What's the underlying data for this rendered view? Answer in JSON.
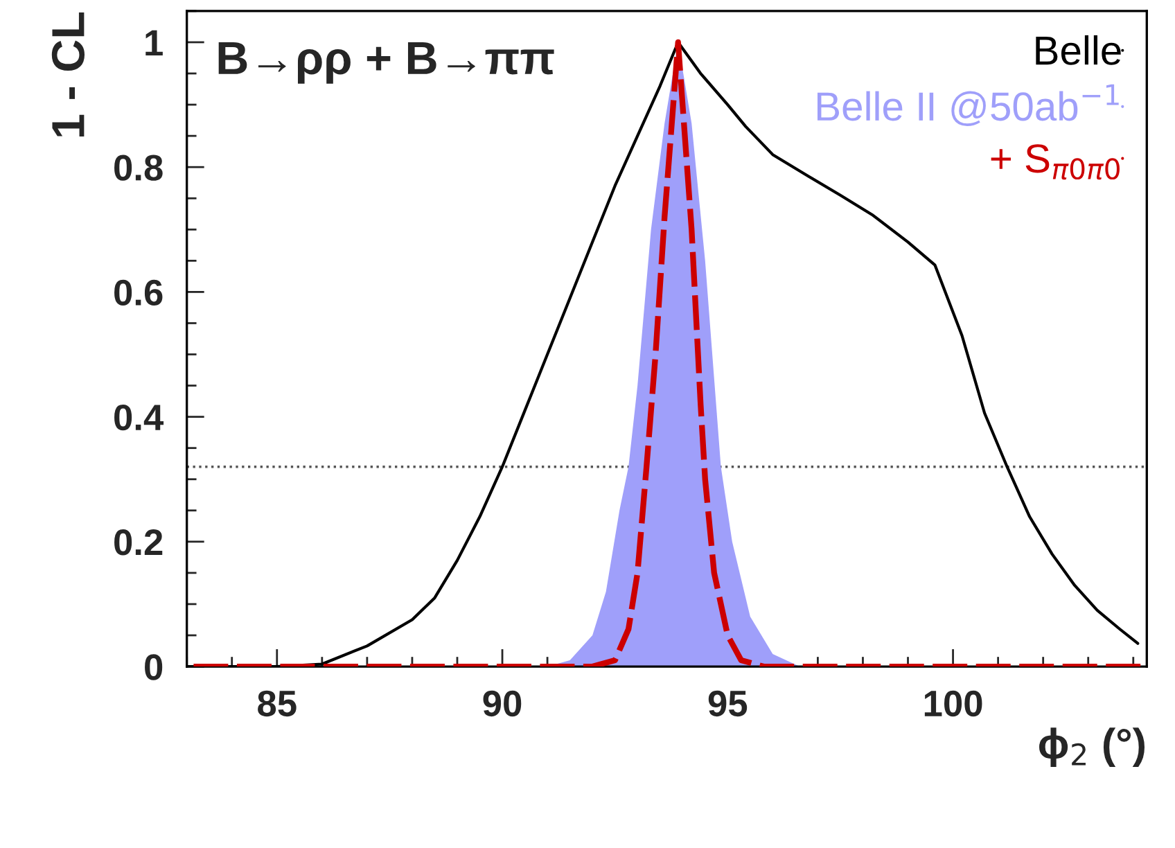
{
  "chart_data": {
    "type": "line",
    "title": "B→ρρ + B→ππ",
    "xlabel": "ϕ$_{2}$ (°)",
    "ylabel": "1 - CL",
    "xlim": [
      83,
      104.3
    ],
    "ylim": [
      0,
      1.05
    ],
    "xticks": [
      85,
      90,
      95,
      100
    ],
    "yticks": [
      0,
      0.2,
      0.4,
      0.6,
      0.8,
      1
    ],
    "legend": "top right",
    "grid": false,
    "ref_lines": [
      {
        "axis": "y",
        "value": 0.32,
        "color": "#555555",
        "line_style": "dotted"
      }
    ],
    "series": [
      {
        "name": "Belle",
        "color": "#000000",
        "line_style": "solid",
        "x": [
          83,
          85,
          86,
          87,
          88,
          88.5,
          89,
          89.5,
          90,
          90.5,
          91,
          91.5,
          92,
          92.5,
          93,
          93.5,
          93.9,
          94.4,
          95,
          95.4,
          96,
          96.8,
          97.5,
          98.2,
          99,
          99.6,
          100.2,
          100.7,
          101.2,
          101.7,
          102.2,
          102.7,
          103.2,
          103.7,
          104.1
        ],
        "values": [
          0,
          0,
          0.004,
          0.033,
          0.075,
          0.11,
          0.17,
          0.24,
          0.32,
          0.41,
          0.5,
          0.59,
          0.68,
          0.77,
          0.85,
          0.93,
          1.0,
          0.95,
          0.9,
          0.865,
          0.82,
          0.785,
          0.755,
          0.724,
          0.68,
          0.643,
          0.53,
          0.406,
          0.32,
          0.24,
          0.18,
          0.13,
          0.09,
          0.06,
          0.037
        ]
      },
      {
        "name": "Belle II @50ab$^{−1}$",
        "type": "area",
        "color": "#9f9ffa",
        "x": [
          83,
          91,
          91.5,
          92,
          92.3,
          92.6,
          92.8,
          93,
          93.3,
          93.6,
          93.9,
          94.2,
          94.5,
          94.85,
          95.1,
          95.5,
          96,
          96.6,
          104.2
        ],
        "values": [
          0,
          0,
          0.01,
          0.05,
          0.12,
          0.25,
          0.32,
          0.45,
          0.7,
          0.87,
          1.0,
          0.87,
          0.65,
          0.32,
          0.2,
          0.08,
          0.02,
          0,
          0
        ]
      },
      {
        "name": "+ S$_{π0π0}$",
        "color": "#cc0000",
        "line_style": "dashed",
        "x": [
          83.15,
          92,
          92.5,
          92.8,
          93.0,
          93.2,
          93.4,
          93.6,
          93.9,
          94.2,
          94.4,
          94.5,
          94.7,
          95.0,
          95.3,
          95.8,
          104.2
        ],
        "values": [
          0,
          0,
          0.01,
          0.06,
          0.15,
          0.32,
          0.5,
          0.72,
          1.0,
          0.7,
          0.42,
          0.3,
          0.15,
          0.05,
          0.01,
          0,
          0
        ]
      }
    ]
  }
}
